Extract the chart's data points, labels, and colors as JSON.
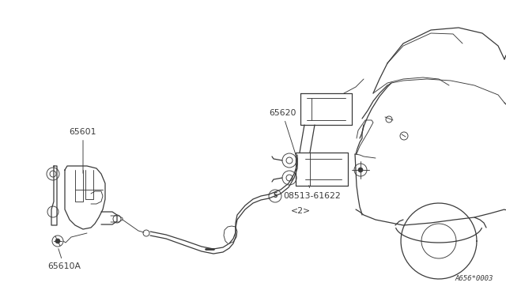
{
  "bg_color": "#ffffff",
  "line_color": "#3a3a3a",
  "text_color": "#3a3a3a",
  "fig_width": 6.4,
  "fig_height": 3.72,
  "dpi": 100,
  "part_number": "A656*0003"
}
